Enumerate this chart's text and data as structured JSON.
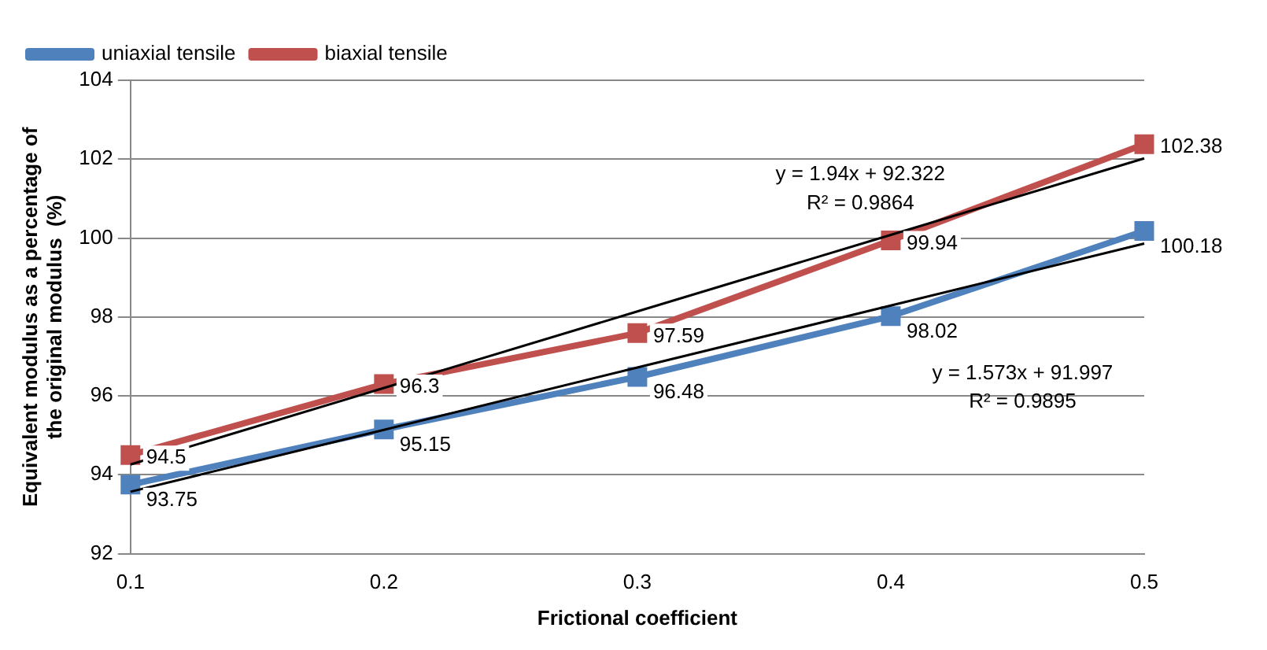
{
  "chart_data": {
    "type": "line",
    "xlabel": "Frictional coefficient",
    "ylabel": "Equivalent modulus as a percentage of the original modulus  (%)",
    "categories": [
      "0.1",
      "0.2",
      "0.3",
      "0.4",
      "0.5"
    ],
    "series": [
      {
        "name": "uniaxial tensile",
        "color": "#4f81bd",
        "values": [
          93.75,
          95.15,
          96.48,
          98.02,
          100.18
        ],
        "value_labels": [
          "93.75",
          "95.15",
          "96.48",
          "98.02",
          "100.18"
        ],
        "marker": "square"
      },
      {
        "name": "biaxial tensile",
        "color": "#c0504d",
        "values": [
          94.5,
          96.3,
          97.59,
          99.94,
          102.38
        ],
        "value_labels": [
          "94.5",
          "96.3",
          "97.59",
          "99.94",
          "102.38"
        ],
        "marker": "square"
      },
      {
        "color": "#000000",
        "values": [
          93.57,
          95.14,
          96.72,
          98.29,
          99.86
        ],
        "marker": "none"
      },
      {
        "color": "#000000",
        "values": [
          94.26,
          96.2,
          98.14,
          100.08,
          102.02
        ],
        "marker": "none"
      }
    ],
    "annotations": [
      "y = 1.94x + 92.322",
      "R² = 0.9864",
      "y = 1.573x + 91.997",
      "R² = 0.9895"
    ],
    "ylim": [
      92,
      104
    ],
    "yticks": [
      92,
      94,
      96,
      98,
      100,
      102,
      104
    ],
    "grid": "y",
    "legend": "top left"
  }
}
